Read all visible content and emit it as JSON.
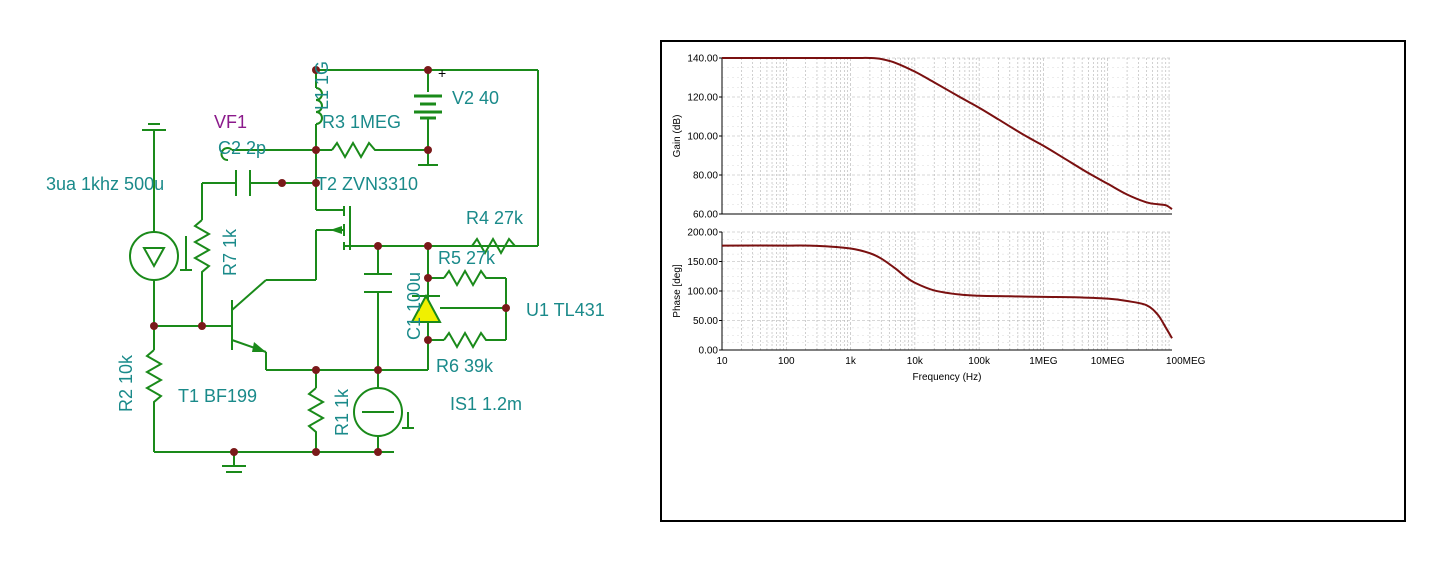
{
  "schematic": {
    "labels": {
      "vf1": "VF1",
      "c2": "C2 2p",
      "l1": "L1 1G",
      "r3": "R3 1MEG",
      "v2": "V2 40",
      "src": "3ua 1khz 500u",
      "t2": "T2 ZVN3310",
      "r4": "R4 27k",
      "r7": "R7 1k",
      "r5": "R5 27k",
      "c1": "C1 100u",
      "u1": "U1 TL431",
      "r6": "R6 39k",
      "r2": "R2 10k",
      "t1": "T1 BF199",
      "r1": "R1 1k",
      "is1": "IS1 1.2m",
      "plus": "+"
    }
  },
  "chart_data": [
    {
      "type": "line",
      "title": "",
      "xlabel": "",
      "ylabel": "Gain (dB)",
      "xscale": "log",
      "xlim": [
        10,
        100000000
      ],
      "ylim": [
        60,
        140
      ],
      "yticks": [
        "140.00",
        "120.00",
        "100.00",
        "80.00",
        "60.00"
      ],
      "grid": true,
      "color": "#7a1010",
      "series": [
        {
          "x": [
            10,
            100,
            1000,
            2000,
            3000,
            5000,
            10000,
            20000,
            50000,
            100000,
            200000,
            500000,
            1000000,
            2000000,
            5000000,
            10000000,
            20000000,
            40000000,
            60000000,
            80000000,
            100000000
          ],
          "values": [
            140,
            140,
            140,
            140,
            139.5,
            137.5,
            133,
            127.5,
            120,
            114.5,
            108.5,
            100.5,
            95,
            89,
            81,
            75.5,
            70,
            66,
            65,
            64.5,
            62.5
          ]
        }
      ]
    },
    {
      "type": "line",
      "title": "",
      "xlabel": "Frequency (Hz)",
      "ylabel": "Phase [deg]",
      "xscale": "log",
      "xlim": [
        10,
        100000000
      ],
      "ylim": [
        0,
        200
      ],
      "yticks": [
        "200.00",
        "150.00",
        "100.00",
        "50.00",
        "0.00"
      ],
      "xticks": [
        "10",
        "100",
        "1k",
        "10k",
        "100k",
        "1MEG",
        "10MEG",
        "100MEG"
      ],
      "grid": true,
      "color": "#7a1010",
      "series": [
        {
          "x": [
            10,
            100,
            300,
            1000,
            2000,
            3000,
            5000,
            7000,
            10000,
            20000,
            50000,
            100000,
            300000,
            1000000,
            3000000,
            10000000,
            20000000,
            40000000,
            60000000,
            80000000,
            100000000
          ],
          "values": [
            177,
            177,
            176.5,
            172,
            164,
            155,
            138,
            125,
            114,
            101,
            94,
            92,
            91,
            90,
            89.5,
            87,
            83,
            76,
            60,
            38,
            20
          ]
        }
      ]
    }
  ]
}
